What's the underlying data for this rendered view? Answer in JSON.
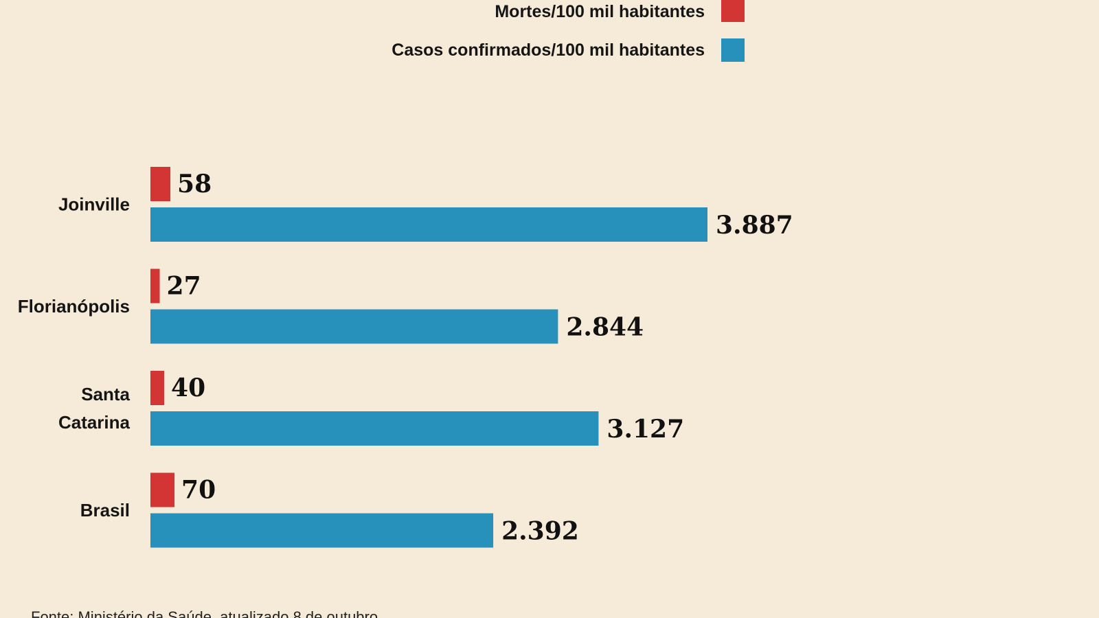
{
  "chart_data": {
    "type": "bar",
    "orientation": "horizontal",
    "categories": [
      "Joinville",
      "Florianópolis",
      "Santa Catarina",
      "Brasil"
    ],
    "category_lines": [
      [
        "Joinville"
      ],
      [
        "Florianópolis"
      ],
      [
        "Santa",
        "Catarina"
      ],
      [
        "Brasil"
      ]
    ],
    "series": [
      {
        "name": "Mortes/100 mil habitantes",
        "color": "#d33434",
        "values": [
          58,
          27,
          40,
          70
        ],
        "labels": [
          "58",
          "27",
          "40",
          "70"
        ]
      },
      {
        "name": "Casos confirmados/100 mil habitantes",
        "color": "#2891bb",
        "values": [
          3887,
          2844,
          3127,
          2392
        ],
        "labels": [
          "3.887",
          "2.844",
          "3.127",
          "2.392"
        ]
      }
    ],
    "legend_position": "top-center",
    "grid": false,
    "xlim": [
      0,
      3887
    ]
  },
  "source": "Fonte: Ministério da Saúde, atualizado 8 de outubro"
}
